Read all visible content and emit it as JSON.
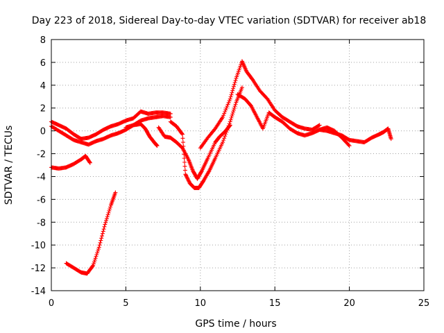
{
  "chart_data": {
    "type": "scatter",
    "title": "Day 223 of 2018, Sidereal Day-to-day VTEC variation (SDTVAR) for receiver ab18",
    "xlabel": "GPS time / hours",
    "ylabel": "SDTVAR / TECUs",
    "xlim": [
      0,
      25
    ],
    "ylim": [
      -14,
      8
    ],
    "x_ticks": [
      0,
      5,
      10,
      15,
      20,
      25
    ],
    "y_ticks": [
      -14,
      -12,
      -10,
      -8,
      -6,
      -4,
      -2,
      0,
      2,
      4,
      6,
      8
    ],
    "x_tick_labels": [
      "0",
      "5",
      "10",
      "15",
      "20",
      "25"
    ],
    "y_tick_labels": [
      "-14",
      "-12",
      "-10",
      "-8",
      "-6",
      "-4",
      "-2",
      "0",
      "2",
      "4",
      "6",
      "8"
    ],
    "grid": true,
    "marker": "+",
    "color": "#ff0000",
    "series": [
      {
        "name": "trace-main-upper",
        "x": [
          0,
          0.5,
          1,
          1.5,
          2,
          2.5,
          3,
          3.5,
          4,
          4.5,
          5,
          5.5,
          6,
          6.5,
          7,
          7.5,
          8
        ],
        "y": [
          0.8,
          0.5,
          0.2,
          -0.3,
          -0.7,
          -0.6,
          -0.3,
          0.1,
          0.4,
          0.6,
          0.9,
          1.1,
          1.7,
          1.5,
          1.6,
          1.6,
          1.5
        ]
      },
      {
        "name": "trace-main-lower",
        "x": [
          0,
          0.5,
          1,
          1.5,
          2,
          2.5,
          3,
          3.5,
          4,
          4.5,
          5,
          5.5,
          6,
          6.5,
          7,
          7.5,
          8
        ],
        "y": [
          0.4,
          0.0,
          -0.4,
          -0.8,
          -1.0,
          -1.2,
          -0.9,
          -0.7,
          -0.4,
          -0.2,
          0.1,
          0.5,
          0.9,
          1.1,
          1.2,
          1.3,
          1.2
        ]
      },
      {
        "name": "trace-early-dip",
        "x": [
          0,
          0.5,
          1,
          1.5,
          2,
          2.3,
          2.6
        ],
        "y": [
          -3.2,
          -3.3,
          -3.2,
          -2.9,
          -2.5,
          -2.2,
          -2.8
        ]
      },
      {
        "name": "trace-deep-dip",
        "x": [
          1.0,
          1.5,
          2.0,
          2.4,
          2.8,
          3.2,
          3.6,
          4.0,
          4.3
        ],
        "y": [
          -11.6,
          -12.0,
          -12.4,
          -12.5,
          -11.8,
          -10.2,
          -8.2,
          -6.5,
          -5.4
        ]
      },
      {
        "name": "trace-bump-6h",
        "x": [
          5.0,
          5.5,
          6.0,
          6.3,
          6.6,
          6.9,
          7.1
        ],
        "y": [
          0.3,
          0.5,
          0.6,
          0.2,
          -0.5,
          -1.0,
          -1.3
        ]
      },
      {
        "name": "trace-descent-a",
        "x": [
          7.2,
          7.6,
          8.0,
          8.4,
          8.8,
          9.2,
          9.5,
          9.8,
          10.1,
          10.5,
          11.0,
          11.3,
          11.7,
          12.0
        ],
        "y": [
          0.3,
          -0.5,
          -0.6,
          -1.0,
          -1.5,
          -2.5,
          -3.5,
          -4.2,
          -3.5,
          -2.4,
          -1.0,
          -0.5,
          0.0,
          0.5
        ]
      },
      {
        "name": "trace-descent-b",
        "x": [
          8.0,
          8.4,
          8.8,
          9.0,
          9.3,
          9.6,
          9.9,
          10.2,
          10.6,
          11.0,
          11.5,
          12.0,
          12.4,
          12.8
        ],
        "y": [
          0.8,
          0.4,
          -0.3,
          -3.8,
          -4.6,
          -5.0,
          -5.0,
          -4.4,
          -3.5,
          -2.4,
          -1.0,
          0.8,
          2.5,
          3.8
        ]
      },
      {
        "name": "trace-spike",
        "x": [
          10.0,
          10.5,
          11.0,
          11.5,
          12.0,
          12.4,
          12.8,
          13.1,
          13.5,
          14.0,
          14.5,
          15.0,
          15.5,
          16.0,
          16.5,
          17.0,
          17.5,
          18.0
        ],
        "y": [
          -1.5,
          -0.6,
          0.2,
          1.2,
          2.8,
          4.6,
          6.1,
          5.2,
          4.5,
          3.5,
          2.8,
          1.8,
          1.2,
          0.8,
          0.4,
          0.2,
          0.1,
          0.5
        ]
      },
      {
        "name": "trace-post-spike",
        "x": [
          12.5,
          13.0,
          13.4,
          13.8,
          14.2,
          14.6,
          15.0,
          15.5,
          16.0,
          16.5,
          17.0,
          17.5,
          18.0,
          18.5,
          19.0,
          19.5,
          20.0
        ],
        "y": [
          3.2,
          2.8,
          2.2,
          1.2,
          0.2,
          1.6,
          1.2,
          0.8,
          0.2,
          -0.2,
          -0.4,
          -0.2,
          0.1,
          0.3,
          0.0,
          -0.6,
          -1.3
        ]
      },
      {
        "name": "trace-tail",
        "x": [
          18.0,
          18.5,
          19.0,
          19.5,
          20.0,
          20.5,
          21.0,
          21.5,
          22.0,
          22.3,
          22.6,
          22.8
        ],
        "y": [
          0.1,
          0.0,
          -0.2,
          -0.4,
          -0.8,
          -0.9,
          -1.0,
          -0.6,
          -0.3,
          -0.1,
          0.2,
          -0.7
        ]
      }
    ]
  }
}
